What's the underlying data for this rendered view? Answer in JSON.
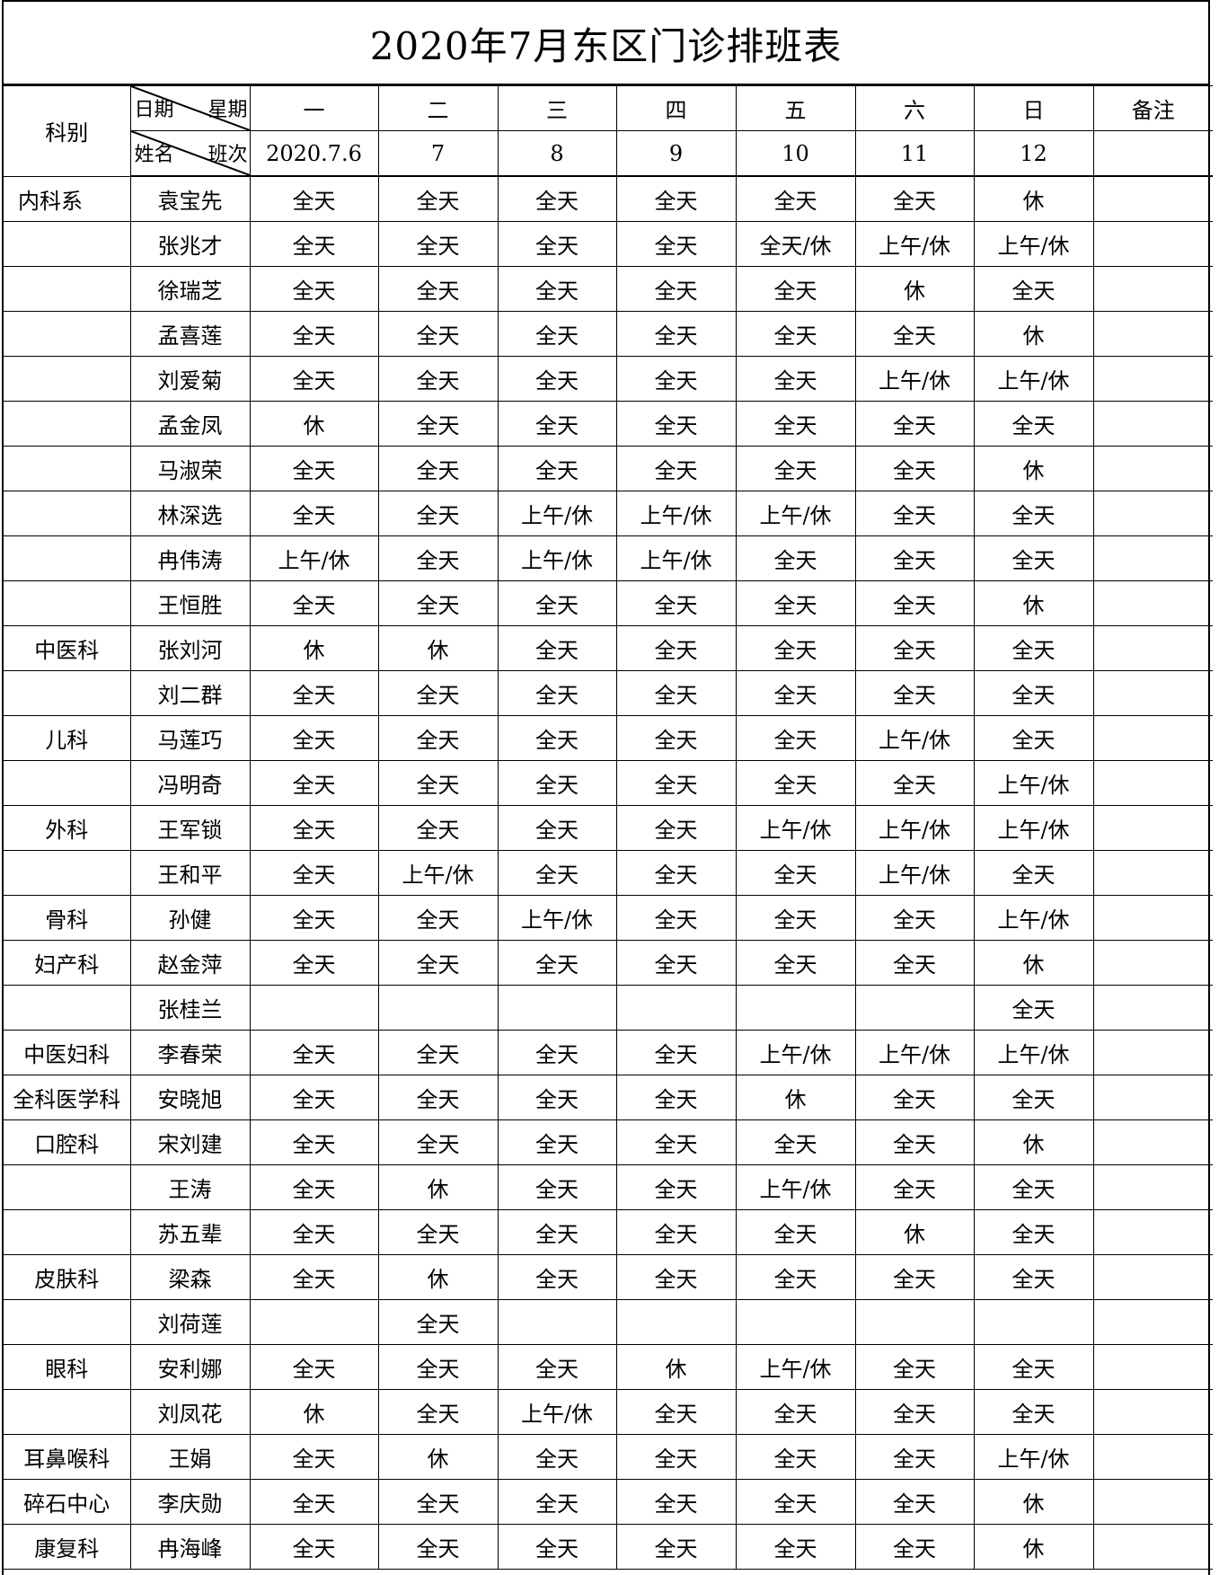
{
  "title": "2020年7月东区门诊排班表",
  "header": {
    "dept_label": "科别",
    "diag_top_left": "日期",
    "diag_top_right": "星期",
    "diag_bottom_left": "姓名",
    "diag_bottom_right": "班次",
    "weekdays": [
      "一",
      "二",
      "三",
      "四",
      "五",
      "六",
      "日"
    ],
    "dates": [
      "2020.7.6",
      "7",
      "8",
      "9",
      "10",
      "11",
      "12"
    ],
    "remarks_label": "备注"
  },
  "rows": [
    {
      "dept": "内科系",
      "name": "袁宝先",
      "shifts": [
        "全天",
        "全天",
        "全天",
        "全天",
        "全天",
        "全天",
        "休"
      ]
    },
    {
      "dept": "",
      "name": "张兆才",
      "shifts": [
        "全天",
        "全天",
        "全天",
        "全天",
        "全天/休",
        "上午/休",
        "上午/休"
      ]
    },
    {
      "dept": "",
      "name": "徐瑞芝",
      "shifts": [
        "全天",
        "全天",
        "全天",
        "全天",
        "全天",
        "休",
        "全天"
      ]
    },
    {
      "dept": "",
      "name": "孟喜莲",
      "shifts": [
        "全天",
        "全天",
        "全天",
        "全天",
        "全天",
        "全天",
        "休"
      ]
    },
    {
      "dept": "",
      "name": "刘爱菊",
      "shifts": [
        "全天",
        "全天",
        "全天",
        "全天",
        "全天",
        "上午/休",
        "上午/休"
      ]
    },
    {
      "dept": "",
      "name": "孟金凤",
      "shifts": [
        "休",
        "全天",
        "全天",
        "全天",
        "全天",
        "全天",
        "全天"
      ]
    },
    {
      "dept": "",
      "name": "马淑荣",
      "shifts": [
        "全天",
        "全天",
        "全天",
        "全天",
        "全天",
        "全天",
        "休"
      ]
    },
    {
      "dept": "",
      "name": "林深选",
      "shifts": [
        "全天",
        "全天",
        "上午/休",
        "上午/休",
        "上午/休",
        "全天",
        "全天"
      ]
    },
    {
      "dept": "",
      "name": "冉伟涛",
      "shifts": [
        "上午/休",
        "全天",
        "上午/休",
        "上午/休",
        "全天",
        "全天",
        "全天"
      ]
    },
    {
      "dept": "",
      "name": "王恒胜",
      "shifts": [
        "全天",
        "全天",
        "全天",
        "全天",
        "全天",
        "全天",
        "休"
      ]
    },
    {
      "dept": "中医科",
      "name": "张刘河",
      "shifts": [
        "休",
        "休",
        "全天",
        "全天",
        "全天",
        "全天",
        "全天"
      ]
    },
    {
      "dept": "",
      "name": "刘二群",
      "shifts": [
        "全天",
        "全天",
        "全天",
        "全天",
        "全天",
        "全天",
        "全天"
      ]
    },
    {
      "dept": "儿科",
      "name": "马莲巧",
      "shifts": [
        "全天",
        "全天",
        "全天",
        "全天",
        "全天",
        "上午/休",
        "全天"
      ]
    },
    {
      "dept": "",
      "name": "冯明奇",
      "shifts": [
        "全天",
        "全天",
        "全天",
        "全天",
        "全天",
        "全天",
        "上午/休"
      ]
    },
    {
      "dept": "外科",
      "name": "王军锁",
      "shifts": [
        "全天",
        "全天",
        "全天",
        "全天",
        "上午/休",
        "上午/休",
        "上午/休"
      ]
    },
    {
      "dept": "",
      "name": "王和平",
      "shifts": [
        "全天",
        "上午/休",
        "全天",
        "全天",
        "全天",
        "上午/休",
        "全天"
      ]
    },
    {
      "dept": "骨科",
      "name": "孙健",
      "shifts": [
        "全天",
        "全天",
        "上午/休",
        "全天",
        "全天",
        "全天",
        "上午/休"
      ]
    },
    {
      "dept": "妇产科",
      "name": "赵金萍",
      "shifts": [
        "全天",
        "全天",
        "全天",
        "全天",
        "全天",
        "全天",
        "休"
      ]
    },
    {
      "dept": "",
      "name": "张桂兰",
      "shifts": [
        "",
        "",
        "",
        "",
        "",
        "",
        "全天"
      ]
    },
    {
      "dept": "中医妇科",
      "name": "李春荣",
      "shifts": [
        "全天",
        "全天",
        "全天",
        "全天",
        "上午/休",
        "上午/休",
        "上午/休"
      ]
    },
    {
      "dept": "全科医学科",
      "name": "安晓旭",
      "shifts": [
        "全天",
        "全天",
        "全天",
        "全天",
        "休",
        "全天",
        "全天"
      ]
    },
    {
      "dept": "口腔科",
      "name": "宋刘建",
      "shifts": [
        "全天",
        "全天",
        "全天",
        "全天",
        "全天",
        "全天",
        "休"
      ]
    },
    {
      "dept": "",
      "name": "王涛",
      "shifts": [
        "全天",
        "休",
        "全天",
        "全天",
        "上午/休",
        "全天",
        "全天"
      ]
    },
    {
      "dept": "",
      "name": "苏五辈",
      "shifts": [
        "全天",
        "全天",
        "全天",
        "全天",
        "全天",
        "休",
        "全天"
      ]
    },
    {
      "dept": "皮肤科",
      "name": "梁森",
      "shifts": [
        "全天",
        "休",
        "全天",
        "全天",
        "全天",
        "全天",
        "全天"
      ]
    },
    {
      "dept": "",
      "name": "刘荷莲",
      "shifts": [
        "",
        "全天",
        "",
        "",
        "",
        "",
        ""
      ]
    },
    {
      "dept": "眼科",
      "name": "安利娜",
      "shifts": [
        "全天",
        "全天",
        "全天",
        "休",
        "上午/休",
        "全天",
        "全天"
      ]
    },
    {
      "dept": "",
      "name": "刘凤花",
      "shifts": [
        "休",
        "全天",
        "上午/休",
        "全天",
        "全天",
        "全天",
        "全天"
      ]
    },
    {
      "dept": "耳鼻喉科",
      "name": "王娟",
      "shifts": [
        "全天",
        "休",
        "全天",
        "全天",
        "全天",
        "全天",
        "上午/休"
      ]
    },
    {
      "dept": "碎石中心",
      "name": "李庆勋",
      "shifts": [
        "全天",
        "全天",
        "全天",
        "全天",
        "全天",
        "全天",
        "休"
      ]
    },
    {
      "dept": "康复科",
      "name": "冉海峰",
      "shifts": [
        "全天",
        "全天",
        "全天",
        "全天",
        "全天",
        "全天",
        "休"
      ]
    }
  ]
}
